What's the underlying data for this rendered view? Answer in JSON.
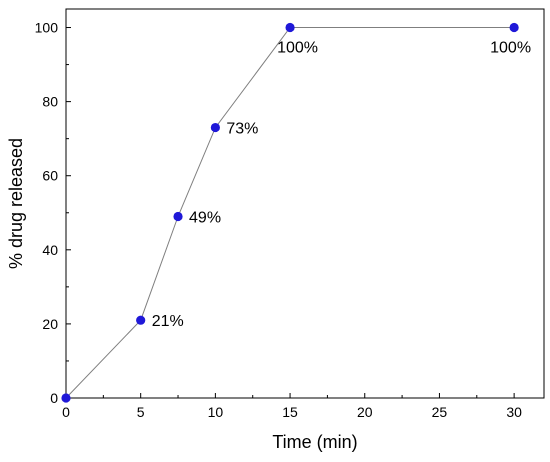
{
  "chart_data": {
    "type": "line",
    "title": "",
    "xlabel": "Time (min)",
    "ylabel": "% drug released",
    "xlim": [
      0,
      32
    ],
    "ylim": [
      0,
      105
    ],
    "xticks": [
      0,
      5,
      10,
      15,
      20,
      25,
      30
    ],
    "yticks": [
      0,
      20,
      40,
      60,
      80,
      100
    ],
    "grid": false,
    "legend": "none",
    "series": [
      {
        "x": [
          0,
          5,
          7.5,
          10,
          15,
          30
        ],
        "y": [
          0,
          21,
          49,
          73,
          100,
          100
        ],
        "labels": [
          "",
          "21%",
          "49%",
          "73%",
          "100%",
          "100%"
        ]
      }
    ],
    "colors": {
      "marker": "#1f18d8",
      "line": "#7f7f7f",
      "axis": "#000000"
    }
  }
}
